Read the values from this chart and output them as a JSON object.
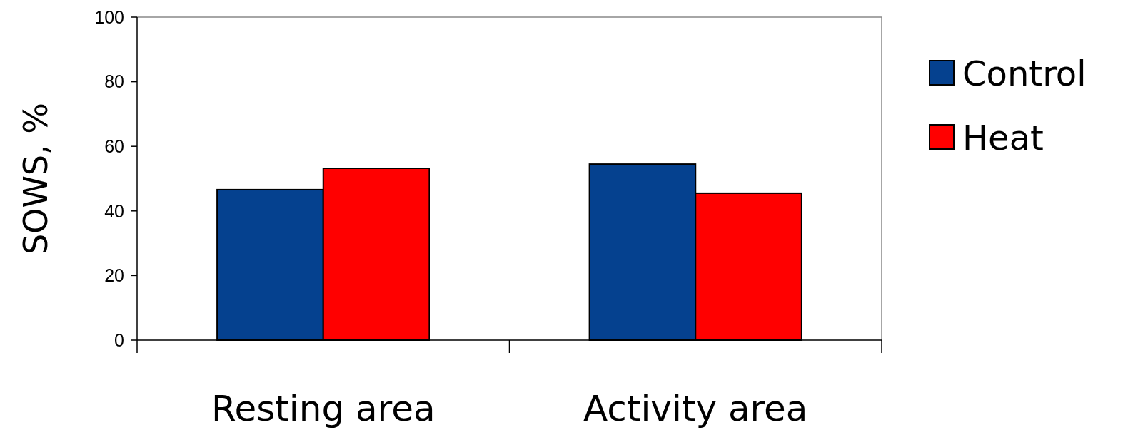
{
  "chart_data": {
    "type": "bar",
    "ylabel": "SOWS, %",
    "categories": [
      "Resting area",
      "Activity area"
    ],
    "series": [
      {
        "name": "Control",
        "color": "#05418f",
        "values": [
          46.6,
          54.5
        ]
      },
      {
        "name": "Heat",
        "color": "#ff0000",
        "values": [
          53.2,
          45.5
        ]
      }
    ],
    "ylim": [
      0,
      100
    ],
    "yticks": [
      0,
      20,
      40,
      60,
      80,
      100
    ],
    "grid": false,
    "legend": "right"
  }
}
